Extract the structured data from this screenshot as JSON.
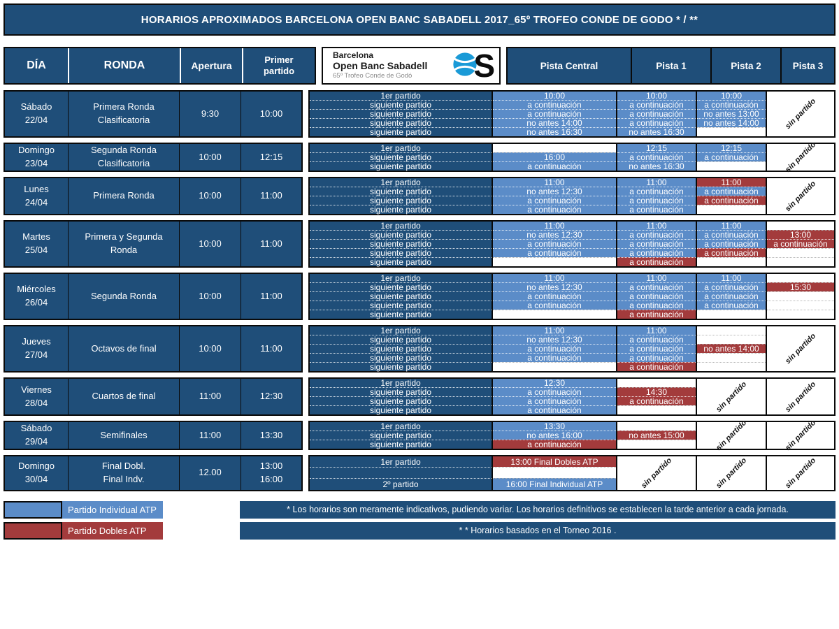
{
  "title": "HORARIOS APROXIMADOS BARCELONA OPEN BANC SABADELL 2017_65º TROFEO CONDE DE GODO * / **",
  "colors": {
    "navy": "#1F4E79",
    "individual_blue": "#5B8CC8",
    "dobles_red": "#A33B3C"
  },
  "header": {
    "dia": "DÍA",
    "ronda": "RONDA",
    "apertura": "Apertura",
    "primer": "Primer partido",
    "logo": {
      "line1": "Barcelona",
      "line2": "Open Banc Sabadell",
      "line3": "65º Trofeo Conde de Godó",
      "mark": "S"
    },
    "pistas": [
      "Pista Central",
      "Pista 1",
      "Pista 2",
      "Pista 3"
    ]
  },
  "sin_partido": "sin partido",
  "rows": [
    {
      "day": "Sábado",
      "date": "22/04",
      "ronda": [
        "Primera Ronda",
        "Clasificatoria"
      ],
      "apertura": "9:30",
      "primer": [
        "10:00"
      ],
      "labels": [
        "1er partido",
        "siguiente partido",
        "siguiente partido",
        "siguiente partido",
        "siguiente partido"
      ],
      "central": [
        {
          "t": "10:00",
          "c": "b"
        },
        {
          "t": "a continuación",
          "c": "b"
        },
        {
          "t": "a continuación",
          "c": "b"
        },
        {
          "t": "no antes 14:00",
          "c": "b"
        },
        {
          "t": "no antes 16:30",
          "c": "b"
        }
      ],
      "p1": [
        {
          "t": "10:00",
          "c": "b"
        },
        {
          "t": "a continuación",
          "c": "b"
        },
        {
          "t": "a continuación",
          "c": "b"
        },
        {
          "t": "a continuación",
          "c": "b"
        },
        {
          "t": "no antes 16:30",
          "c": "b"
        }
      ],
      "p2": [
        {
          "t": "10:00",
          "c": "b"
        },
        {
          "t": "a continuación",
          "c": "b"
        },
        {
          "t": "no antes 13:00",
          "c": "b"
        },
        {
          "t": "no antes 14:00",
          "c": "b"
        },
        {
          "t": "",
          "c": "w"
        }
      ],
      "p3": "sin"
    },
    {
      "day": "Domingo",
      "date": "23/04",
      "ronda": [
        "Segunda Ronda",
        "Clasificatoria"
      ],
      "apertura": "10:00",
      "primer": [
        "12:15"
      ],
      "labels": [
        "1er partido",
        "siguiente partido",
        "siguiente partido"
      ],
      "central": [
        {
          "t": "",
          "c": "w"
        },
        {
          "t": "16:00",
          "c": "b"
        },
        {
          "t": "a continuación",
          "c": "b"
        }
      ],
      "p1": [
        {
          "t": "12:15",
          "c": "b"
        },
        {
          "t": "a continuación",
          "c": "b"
        },
        {
          "t": "no antes 16:30",
          "c": "b"
        }
      ],
      "p2": [
        {
          "t": "12:15",
          "c": "b"
        },
        {
          "t": "a continuación",
          "c": "b"
        },
        {
          "t": "",
          "c": "w"
        }
      ],
      "p3": "sin"
    },
    {
      "day": "Lunes",
      "date": "24/04",
      "ronda": [
        "Primera Ronda"
      ],
      "apertura": "10:00",
      "primer": [
        "11:00"
      ],
      "labels": [
        "1er partido",
        "siguiente partido",
        "siguiente partido",
        "siguiente partido"
      ],
      "central": [
        {
          "t": "11:00",
          "c": "b"
        },
        {
          "t": "no antes 12:30",
          "c": "b"
        },
        {
          "t": "a continuación",
          "c": "b"
        },
        {
          "t": "a continuación",
          "c": "b"
        }
      ],
      "p1": [
        {
          "t": "11:00",
          "c": "b"
        },
        {
          "t": "a continuación",
          "c": "b"
        },
        {
          "t": "a continuación",
          "c": "b"
        },
        {
          "t": "a continuación",
          "c": "b"
        }
      ],
      "p2": [
        {
          "t": "11:00",
          "c": "r"
        },
        {
          "t": "a continuación",
          "c": "b"
        },
        {
          "t": "a continuación",
          "c": "r"
        },
        {
          "t": "",
          "c": "w"
        }
      ],
      "p3": "sin"
    },
    {
      "day": "Martes",
      "date": "25/04",
      "ronda": [
        "Primera y Segunda",
        "Ronda"
      ],
      "apertura": "10:00",
      "primer": [
        "11:00"
      ],
      "labels": [
        "1er partido",
        "siguiente partido",
        "siguiente partido",
        "siguiente partido",
        "siguiente partido"
      ],
      "central": [
        {
          "t": "11:00",
          "c": "b"
        },
        {
          "t": "no antes 12:30",
          "c": "b"
        },
        {
          "t": "a continuación",
          "c": "b"
        },
        {
          "t": "a continuación",
          "c": "b"
        },
        {
          "t": "",
          "c": "w"
        }
      ],
      "p1": [
        {
          "t": "11:00",
          "c": "b"
        },
        {
          "t": "a continuación",
          "c": "b"
        },
        {
          "t": "a continuación",
          "c": "b"
        },
        {
          "t": "a continuación",
          "c": "b"
        },
        {
          "t": "a continuación",
          "c": "r"
        }
      ],
      "p2": [
        {
          "t": "11:00",
          "c": "b"
        },
        {
          "t": "a continuación",
          "c": "b"
        },
        {
          "t": "a continuación",
          "c": "b"
        },
        {
          "t": "a continuación",
          "c": "r"
        },
        {
          "t": "",
          "c": "w"
        }
      ],
      "p3": [
        {
          "t": "",
          "c": "w"
        },
        {
          "t": "13:00",
          "c": "r"
        },
        {
          "t": "a continuación",
          "c": "r"
        },
        {
          "t": "",
          "c": "w"
        },
        {
          "t": "",
          "c": "w"
        }
      ]
    },
    {
      "day": "Miércoles",
      "date": "26/04",
      "ronda": [
        "Segunda Ronda"
      ],
      "apertura": "10:00",
      "primer": [
        "11:00"
      ],
      "labels": [
        "1er partido",
        "siguiente partido",
        "siguiente partido",
        "siguiente partido",
        "siguiente partido"
      ],
      "central": [
        {
          "t": "11:00",
          "c": "b"
        },
        {
          "t": "no antes 12:30",
          "c": "b"
        },
        {
          "t": "a continuación",
          "c": "b"
        },
        {
          "t": "a continuación",
          "c": "b"
        },
        {
          "t": "",
          "c": "w"
        }
      ],
      "p1": [
        {
          "t": "11:00",
          "c": "b"
        },
        {
          "t": "a continuación",
          "c": "b"
        },
        {
          "t": "a continuación",
          "c": "b"
        },
        {
          "t": "a continuación",
          "c": "b"
        },
        {
          "t": "a continuación",
          "c": "r"
        }
      ],
      "p2": [
        {
          "t": "11:00",
          "c": "b"
        },
        {
          "t": "a continuación",
          "c": "b"
        },
        {
          "t": "a continuación",
          "c": "b"
        },
        {
          "t": "a continuación",
          "c": "b"
        },
        {
          "t": "",
          "c": "w"
        }
      ],
      "p3": [
        {
          "t": "",
          "c": "w"
        },
        {
          "t": "15:30",
          "c": "r"
        },
        {
          "t": "",
          "c": "w"
        },
        {
          "t": "",
          "c": "w"
        },
        {
          "t": "",
          "c": "w"
        }
      ]
    },
    {
      "day": "Jueves",
      "date": "27/04",
      "ronda": [
        "Octavos de final"
      ],
      "apertura": "10:00",
      "primer": [
        "11:00"
      ],
      "labels": [
        "1er partido",
        "siguiente partido",
        "siguiente partido",
        "siguiente partido",
        "siguiente partido"
      ],
      "central": [
        {
          "t": "11:00",
          "c": "b"
        },
        {
          "t": "no antes 12:30",
          "c": "b"
        },
        {
          "t": "a continuación",
          "c": "b"
        },
        {
          "t": "a continuación",
          "c": "b"
        },
        {
          "t": "",
          "c": "w"
        }
      ],
      "p1": [
        {
          "t": "11:00",
          "c": "b"
        },
        {
          "t": "a continuación",
          "c": "b"
        },
        {
          "t": "a continuación",
          "c": "b"
        },
        {
          "t": "a continuación",
          "c": "b"
        },
        {
          "t": "a continuación",
          "c": "r"
        }
      ],
      "p2": [
        {
          "t": "",
          "c": "w"
        },
        {
          "t": "",
          "c": "w"
        },
        {
          "t": "no antes 14:00",
          "c": "r"
        },
        {
          "t": "",
          "c": "w"
        },
        {
          "t": "",
          "c": "w"
        }
      ],
      "p3": "sin"
    },
    {
      "day": "Viernes",
      "date": "28/04",
      "ronda": [
        "Cuartos de final"
      ],
      "apertura": "11:00",
      "primer": [
        "12:30"
      ],
      "labels": [
        "1er partido",
        "siguiente partido",
        "siguiente partido",
        "siguiente partido"
      ],
      "central": [
        {
          "t": "12:30",
          "c": "b"
        },
        {
          "t": "a continuación",
          "c": "b"
        },
        {
          "t": "a continuación",
          "c": "b"
        },
        {
          "t": "a continuación",
          "c": "b"
        }
      ],
      "p1": [
        {
          "t": "",
          "c": "w"
        },
        {
          "t": "14:30",
          "c": "r"
        },
        {
          "t": "a continuación",
          "c": "r"
        },
        {
          "t": "",
          "c": "w"
        }
      ],
      "p2": "sin",
      "p3": "sin"
    },
    {
      "day": "Sábado",
      "date": "29/04",
      "ronda": [
        "Semifinales"
      ],
      "apertura": "11:00",
      "primer": [
        "13:30"
      ],
      "labels": [
        "1er partido",
        "siguiente partido",
        "siguiente partido"
      ],
      "central": [
        {
          "t": "13:30",
          "c": "b"
        },
        {
          "t": "no antes 16:00",
          "c": "b"
        },
        {
          "t": "a continuación",
          "c": "r"
        }
      ],
      "p1": [
        {
          "t": "",
          "c": "w"
        },
        {
          "t": "no antes 15:00",
          "c": "r"
        },
        {
          "t": "",
          "c": "w"
        }
      ],
      "p2": "sin",
      "p3": "sin"
    },
    {
      "day": "Domingo",
      "date": "30/04",
      "ronda": [
        "Final Dobl.",
        "Final Indv."
      ],
      "apertura": "12.00",
      "primer": [
        "13:00",
        "16:00"
      ],
      "spread": true,
      "labels": [
        "1er partido",
        "",
        "2º partido"
      ],
      "central": [
        {
          "t": "13:00 Final Dobles ATP",
          "c": "r"
        },
        {
          "t": "",
          "c": "w"
        },
        {
          "t": "16:00 Final Individual ATP",
          "c": "b"
        }
      ],
      "p1": "sin",
      "p2": "sin",
      "p3": "sin"
    }
  ],
  "legend": [
    {
      "label": "Partido Individual ATP",
      "color": "blue"
    },
    {
      "label": "Partido Dobles ATP",
      "color": "red"
    }
  ],
  "notes": [
    "*  Los horarios son meramente indicativos, pudiendo variar. Los horarios definitivos se establecen la tarde anterior a cada jornada.",
    "* *  Horarios basados en el Torneo 2016 ."
  ]
}
